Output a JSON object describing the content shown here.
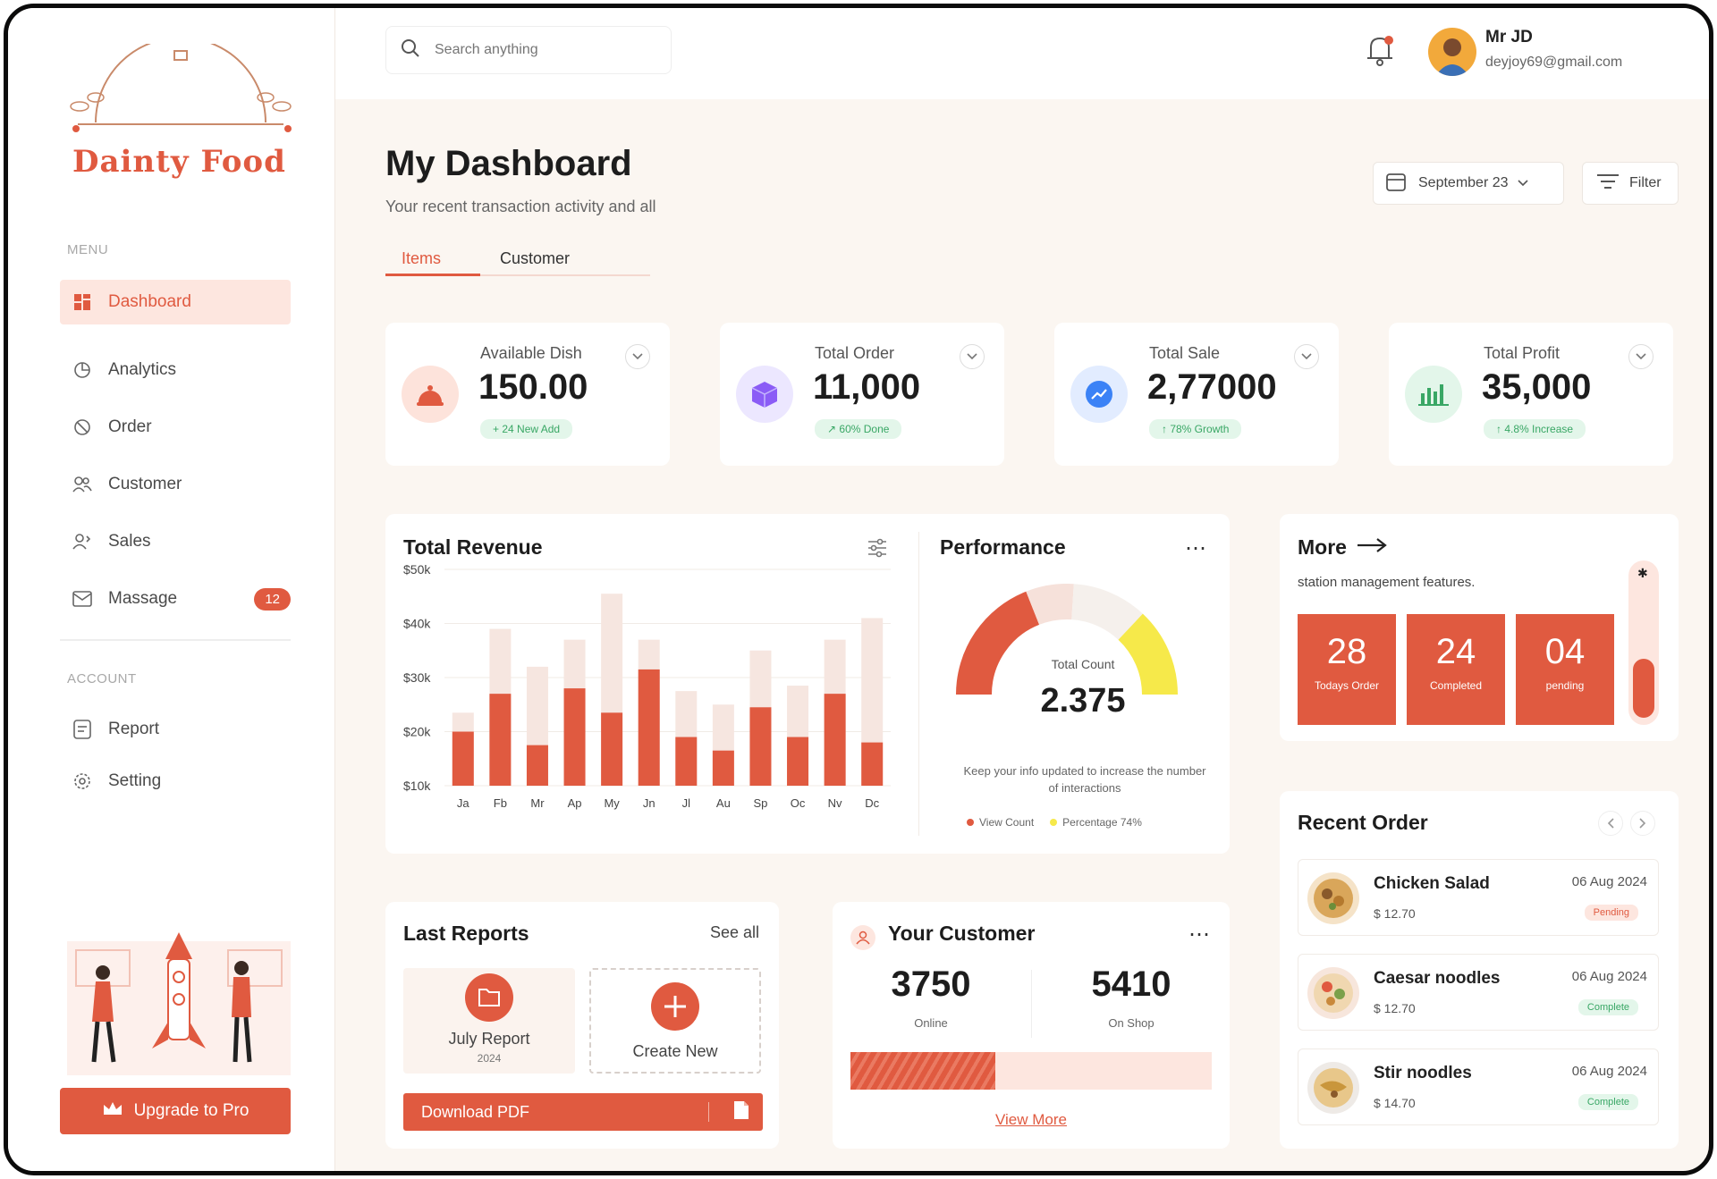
{
  "brand": {
    "name": "Dainty Food"
  },
  "sidebar": {
    "menu_heading": "MENU",
    "items": [
      {
        "label": "Dashboard",
        "icon": "dashboard-icon"
      },
      {
        "label": "Analytics",
        "icon": "analytics-icon"
      },
      {
        "label": "Order",
        "icon": "order-icon"
      },
      {
        "label": "Customer",
        "icon": "customer-icon"
      },
      {
        "label": "Sales",
        "icon": "sales-icon"
      },
      {
        "label": "Massage",
        "icon": "message-icon",
        "badge": "12"
      }
    ],
    "account_heading": "ACCOUNT",
    "account_items": [
      {
        "label": "Report",
        "icon": "report-icon"
      },
      {
        "label": "Setting",
        "icon": "setting-icon"
      }
    ],
    "upgrade_label": "Upgrade to Pro"
  },
  "topbar": {
    "search_placeholder": "Search anything",
    "user_name": "Mr JD",
    "user_email": "deyjoy69@gmail.com"
  },
  "header": {
    "title": "My Dashboard",
    "subtitle": "Your recent transaction activity and all",
    "date": "September 23",
    "filter": "Filter",
    "tabs": [
      "Items",
      "Customer"
    ]
  },
  "stats": [
    {
      "label": "Available Dish",
      "value": "150.00",
      "tag": "+ 24 New Add",
      "color": "#fde3db",
      "icon": "cloche-icon"
    },
    {
      "label": "Total Order",
      "value": "11,000",
      "tag": "↗ 60% Done",
      "color": "#ece7ff",
      "icon": "box-icon"
    },
    {
      "label": "Total Sale",
      "value": "2,77000",
      "tag": "↑ 78% Growth",
      "color": "#e2ecff",
      "icon": "trend-icon"
    },
    {
      "label": "Total Profit",
      "value": "35,000",
      "tag": "↑ 4.8% Increase",
      "color": "#e3f6ea",
      "icon": "bars-icon"
    }
  ],
  "revenue": {
    "title": "Total Revenue"
  },
  "chart_data": {
    "type": "bar",
    "title": "Total Revenue",
    "categories": [
      "Ja",
      "Fb",
      "Mr",
      "Ap",
      "My",
      "Jn",
      "Jl",
      "Au",
      "Sp",
      "Oc",
      "Nv",
      "Dc"
    ],
    "ylim": [
      10,
      50
    ],
    "yticks": [
      "$10k",
      "$20k",
      "$30k",
      "$40k",
      "$50k"
    ],
    "series": [
      {
        "name": "Revenue",
        "values": [
          20,
          27,
          17.5,
          28,
          23.5,
          31.5,
          19,
          16.5,
          24.5,
          19,
          27,
          18
        ]
      },
      {
        "name": "Target",
        "values": [
          23.5,
          39,
          32,
          37,
          45.5,
          37,
          27.5,
          25,
          35,
          28.5,
          37,
          41
        ]
      }
    ]
  },
  "performance": {
    "title": "Performance",
    "count_label": "Total Count",
    "count": "2.375",
    "note": "Keep your info updated to increase the number of interactions",
    "legend1": "View Count",
    "legend2": "Percentage 74%",
    "gauge_fraction": 0.74
  },
  "more": {
    "title": "More",
    "desc": "station management features.",
    "tiles": [
      {
        "value": "28",
        "label": "Todays Order"
      },
      {
        "value": "24",
        "label": "Completed"
      },
      {
        "value": "04",
        "label": "pending"
      }
    ]
  },
  "reports": {
    "title": "Last Reports",
    "see_all": "See all",
    "item_title": "July Report",
    "item_year": "2024",
    "create": "Create New",
    "download": "Download PDF"
  },
  "customers": {
    "title": "Your Customer",
    "online": "3750",
    "online_label": "Online",
    "shop": "5410",
    "shop_label": "On Shop",
    "view_more": "View More",
    "progress_fraction": 0.4
  },
  "recent": {
    "title": "Recent Order",
    "orders": [
      {
        "name": "Chicken Salad",
        "price": "$ 12.70",
        "date": "06 Aug 2024",
        "status": "Pending"
      },
      {
        "name": "Caesar noodles",
        "price": "$ 12.70",
        "date": "06 Aug 2024",
        "status": "Complete"
      },
      {
        "name": "Stir noodles",
        "price": "$ 14.70",
        "date": "06 Aug 2024",
        "status": "Complete"
      }
    ]
  }
}
